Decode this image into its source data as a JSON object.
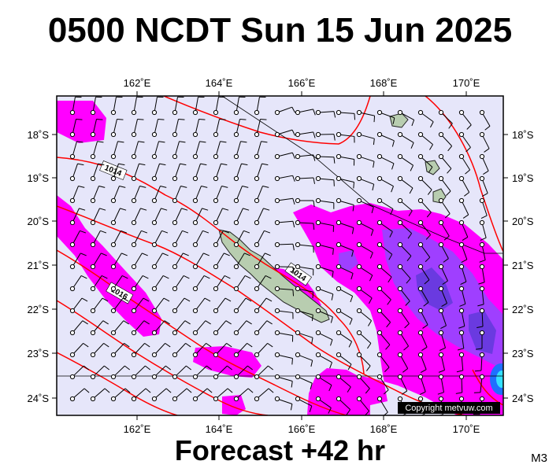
{
  "title": "0500 NCDT Sun 15 Jun 2025",
  "footer": "Forecast +42 hr",
  "model_code": "M3",
  "copyright": "Copyright metvuw.com",
  "lon_labels": [
    "162˚E",
    "164˚E",
    "166˚E",
    "168˚E",
    "170˚E"
  ],
  "lat_labels": [
    "18˚S",
    "19˚S",
    "20˚S",
    "21˚S",
    "22˚S",
    "23˚S",
    "24˚S"
  ],
  "isobar_labels": [
    "1014",
    "1016",
    "1014"
  ],
  "colors": {
    "sea": "#e6e6fa",
    "rain_light": "#ff00ff",
    "rain_medium": "#9f3fff",
    "rain_heavy": "#6a3ae0",
    "rain_extreme": "#1f6fff",
    "isobar": "#ff0000",
    "land": "#b8cdb0"
  }
}
